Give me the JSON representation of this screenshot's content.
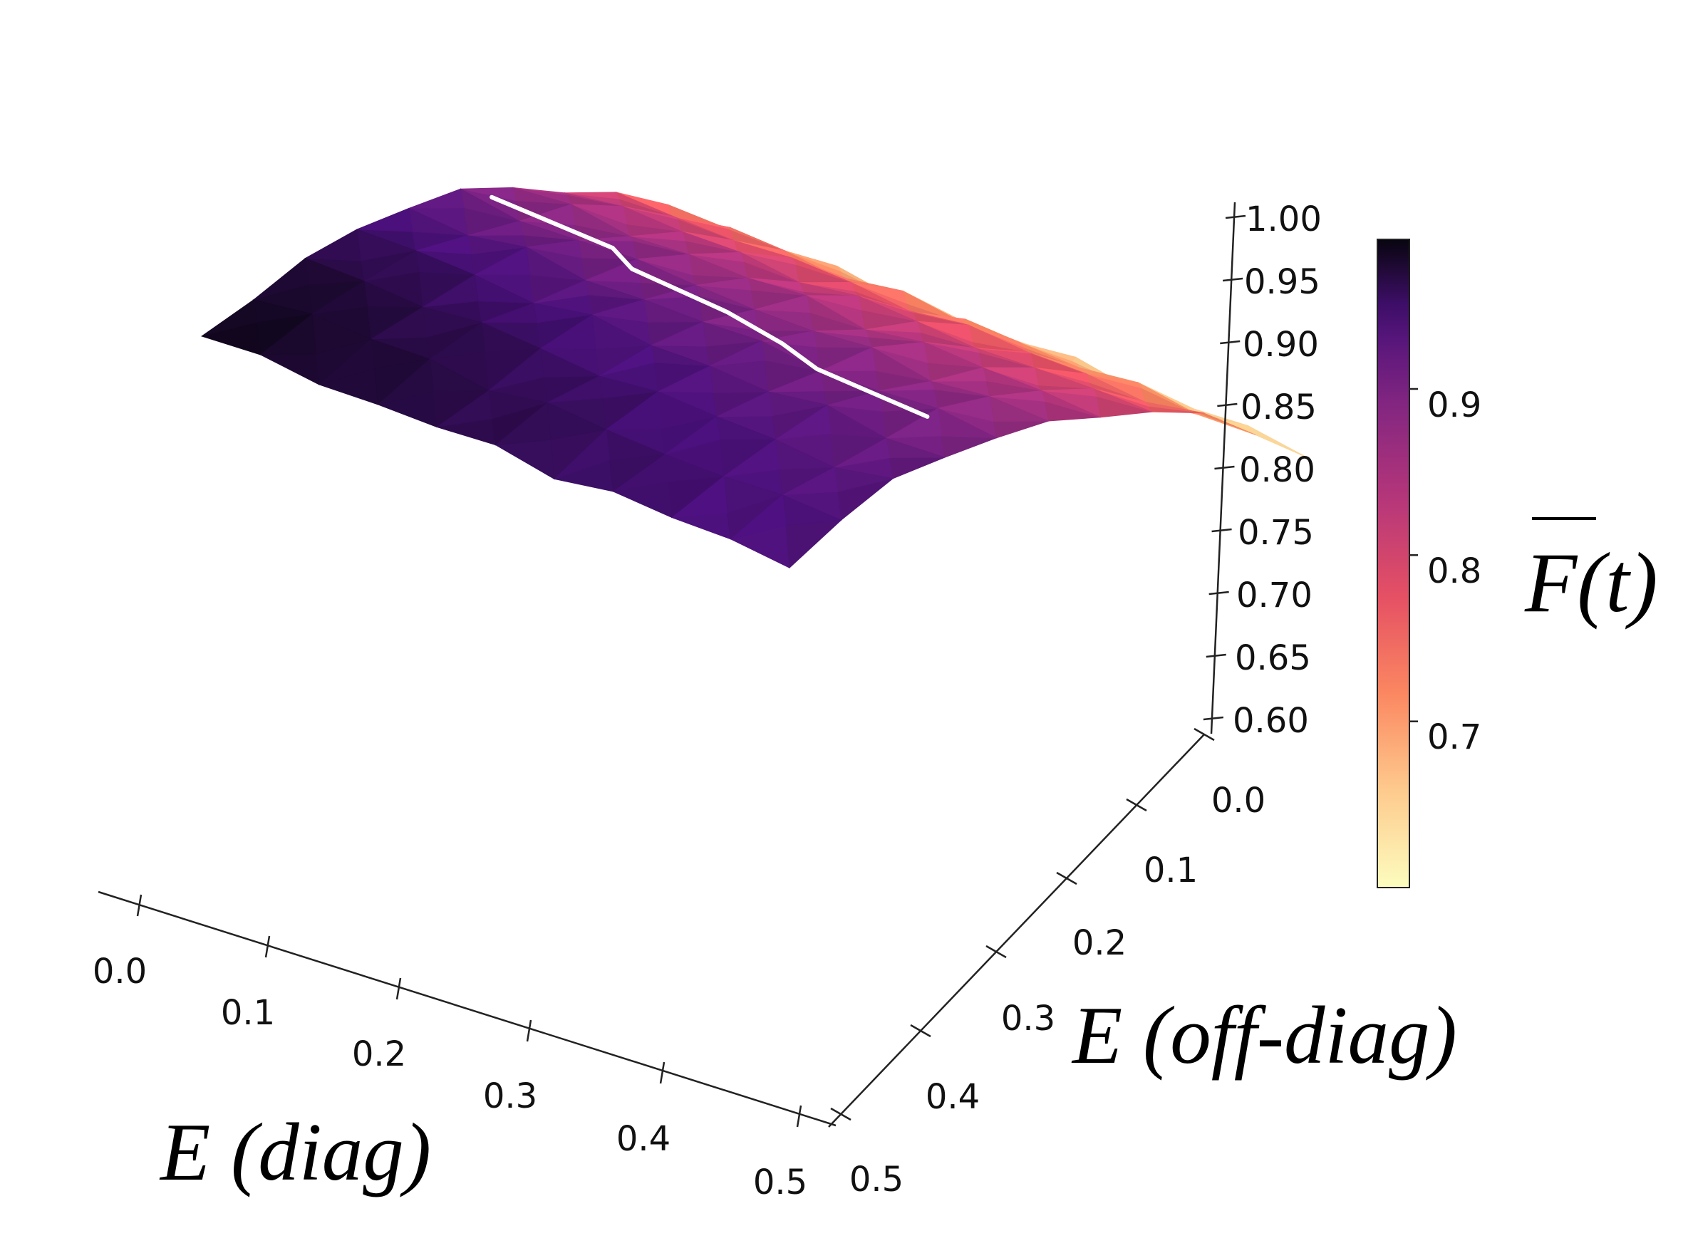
{
  "chart_data": {
    "type": "surface3d",
    "title": "",
    "xlabel": "E (diag)",
    "ylabel": "E (off-diag)",
    "zlabel": "",
    "colorbar_label": "F(t)",
    "colormap": "magma_r",
    "x_ticks": [
      "0.0",
      "0.1",
      "0.2",
      "0.3",
      "0.4",
      "0.5"
    ],
    "y_ticks": [
      "0.0",
      "0.1",
      "0.2",
      "0.3",
      "0.4",
      "0.5"
    ],
    "z_ticks": [
      "1.00",
      "0.95",
      "0.90",
      "0.85",
      "0.80",
      "0.75",
      "0.70",
      "0.65",
      "0.60"
    ],
    "colorbar_ticks": [
      "0.9",
      "0.8",
      "0.7"
    ],
    "xlim": [
      0,
      0.5
    ],
    "ylim": [
      0,
      0.5
    ],
    "zlim": [
      0.6,
      1.0
    ],
    "colorbar_range": [
      0.6,
      0.99
    ],
    "surface_shape": "F ≈ 0.985 − 0.0955·d − 1.23·o² at grid points d, o = 0.0 … 0.5 (step 0.05), plus small corrugation",
    "contour_level": 0.9,
    "contour_color": "#ffffff"
  }
}
